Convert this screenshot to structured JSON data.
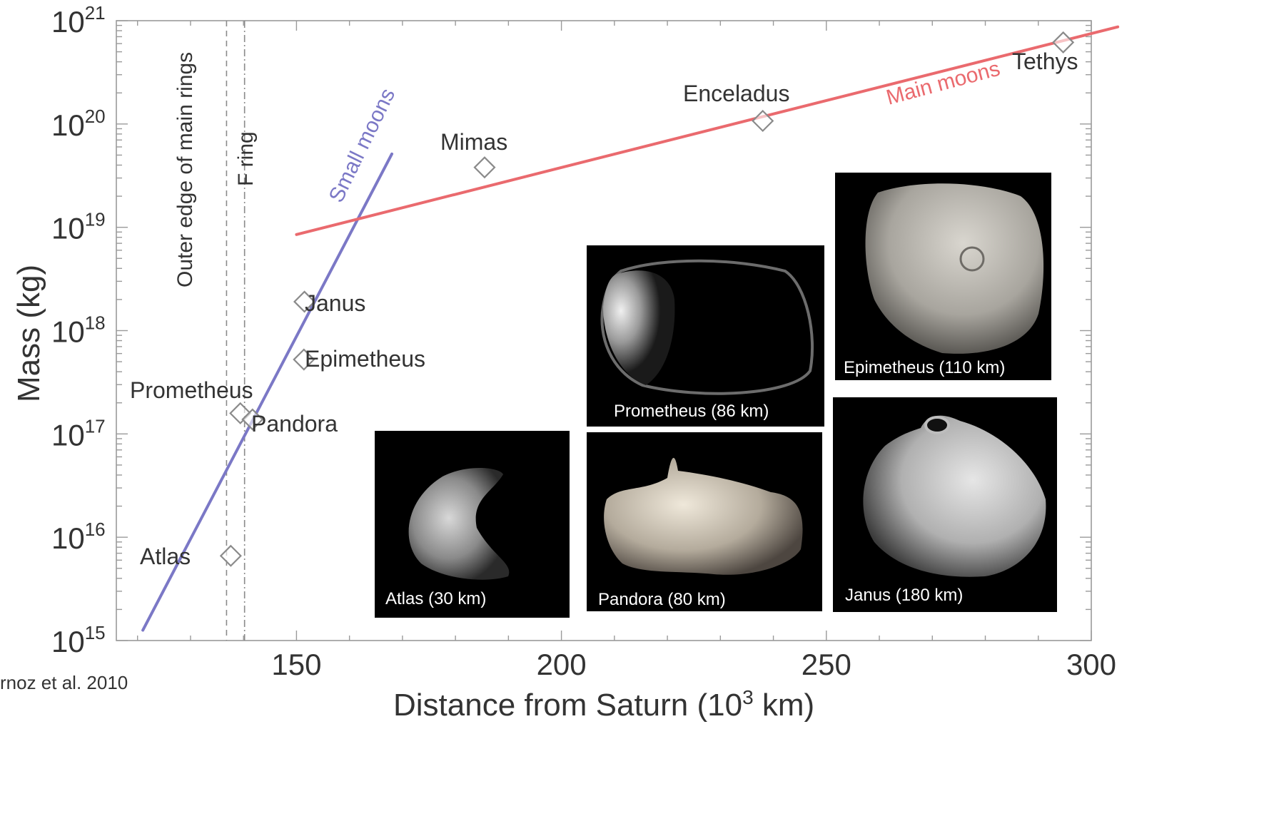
{
  "chart_data": {
    "type": "scatter",
    "xlabel_main": "Distance from Saturn (10",
    "xlabel_sup": "3",
    "xlabel_end": " km)",
    "ylabel": "Mass (kg)",
    "xlim": [
      116,
      300
    ],
    "ylim_log10": [
      15,
      21
    ],
    "yscale": "log",
    "x_ticks": [
      150,
      200,
      250,
      300
    ],
    "y_ticks": [
      {
        "base": "10",
        "exp": "15",
        "log": 15
      },
      {
        "base": "10",
        "exp": "16",
        "log": 16
      },
      {
        "base": "10",
        "exp": "17",
        "log": 17
      },
      {
        "base": "10",
        "exp": "18",
        "log": 18
      },
      {
        "base": "10",
        "exp": "19",
        "log": 19
      },
      {
        "base": "10",
        "exp": "20",
        "log": 20
      },
      {
        "base": "10",
        "exp": "21",
        "log": 21
      }
    ],
    "points": [
      {
        "name": "Atlas",
        "x": 137.6,
        "log_mass": 15.82
      },
      {
        "name": "Prometheus",
        "x": 139.4,
        "log_mass": 17.2
      },
      {
        "name": "Pandora",
        "x": 141.7,
        "log_mass": 17.14
      },
      {
        "name": "Epimetheus",
        "x": 151.4,
        "log_mass": 17.72
      },
      {
        "name": "Janus",
        "x": 151.5,
        "log_mass": 18.28
      },
      {
        "name": "Mimas",
        "x": 185.5,
        "log_mass": 19.58
      },
      {
        "name": "Enceladus",
        "x": 238.0,
        "log_mass": 20.03
      },
      {
        "name": "Tethys",
        "x": 294.7,
        "log_mass": 20.79
      }
    ],
    "vertical_lines": [
      {
        "label": "Outer edge of main rings",
        "x": 136.8
      },
      {
        "label": "F ring",
        "x": 140.2
      }
    ],
    "trend_lines": [
      {
        "name": "Small moons",
        "color": "#7b78c6",
        "x": [
          121,
          168
        ],
        "log_mass": [
          15.1,
          19.71
        ]
      },
      {
        "name": "Main moons",
        "color": "#ea6a6e",
        "x": [
          150,
          305
        ],
        "log_mass": [
          18.93,
          20.94
        ]
      }
    ],
    "grid": false
  },
  "citation": "rnoz et al. 2010",
  "photos": [
    {
      "name": "Atlas",
      "caption": "Atlas (30 km)"
    },
    {
      "name": "Prometheus",
      "caption": "Prometheus (86 km)"
    },
    {
      "name": "Pandora",
      "caption": "Pandora (80 km)"
    },
    {
      "name": "Epimetheus",
      "caption": "Epimetheus (110 km)"
    },
    {
      "name": "Janus",
      "caption": "Janus (180 km)"
    }
  ],
  "colors": {
    "small_moons": "#7b78c6",
    "main_moons": "#ea6a6e",
    "marker_stroke": "#8a8a8a",
    "frame": "#9a9a9a"
  }
}
